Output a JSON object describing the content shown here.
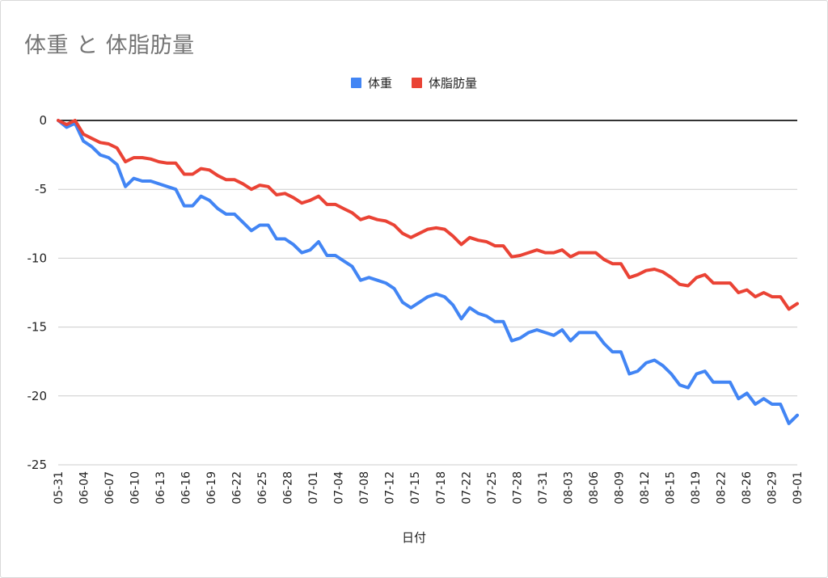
{
  "chart_data": {
    "type": "line",
    "title": "体重 と 体脂肪量",
    "xlabel": "日付",
    "ylabel": "",
    "ylim": [
      -25,
      0
    ],
    "yticks": [
      0,
      -5,
      -10,
      -15,
      -20,
      -25
    ],
    "grid": true,
    "legend_position": "top",
    "x_tick_labels": [
      "05-31",
      "06-04",
      "06-07",
      "06-10",
      "06-13",
      "06-16",
      "06-19",
      "06-22",
      "06-25",
      "06-28",
      "07-01",
      "07-04",
      "07-08",
      "07-12",
      "07-15",
      "07-18",
      "07-22",
      "07-25",
      "07-28",
      "07-31",
      "08-03",
      "08-06",
      "08-09",
      "08-12",
      "08-15",
      "08-19",
      "08-22",
      "08-26",
      "08-29",
      "09-01"
    ],
    "series": [
      {
        "name": "体重",
        "color": "#4285f4",
        "values": [
          0,
          -0.5,
          -0.2,
          -1.5,
          -1.9,
          -2.5,
          -2.7,
          -3.2,
          -4.8,
          -4.2,
          -4.4,
          -4.4,
          -4.6,
          -4.8,
          -5.0,
          -6.2,
          -6.2,
          -5.5,
          -5.8,
          -6.4,
          -6.8,
          -6.8,
          -7.4,
          -8.0,
          -7.6,
          -7.6,
          -8.6,
          -8.6,
          -9.0,
          -9.6,
          -9.4,
          -8.8,
          -9.8,
          -9.8,
          -10.2,
          -10.6,
          -11.6,
          -11.4,
          -11.6,
          -11.8,
          -12.2,
          -13.2,
          -13.6,
          -13.2,
          -12.8,
          -12.6,
          -12.8,
          -13.4,
          -14.4,
          -13.6,
          -14.0,
          -14.2,
          -14.6,
          -14.6,
          -16.0,
          -15.8,
          -15.4,
          -15.2,
          -15.4,
          -15.6,
          -15.2,
          -16.0,
          -15.4,
          -15.4,
          -15.4,
          -16.2,
          -16.8,
          -16.8,
          -18.4,
          -18.2,
          -17.6,
          -17.4,
          -17.8,
          -18.4,
          -19.2,
          -19.4,
          -18.4,
          -18.2,
          -19.0,
          -19.0,
          -19.0,
          -20.2,
          -19.8,
          -20.6,
          -20.2,
          -20.6,
          -20.6,
          -22.0,
          -21.4
        ]
      },
      {
        "name": "体脂肪量",
        "color": "#ea4335",
        "values": [
          0,
          -0.3,
          0,
          -1.0,
          -1.3,
          -1.6,
          -1.7,
          -2.0,
          -3.0,
          -2.7,
          -2.7,
          -2.8,
          -3.0,
          -3.1,
          -3.1,
          -3.9,
          -3.9,
          -3.5,
          -3.6,
          -4.0,
          -4.3,
          -4.3,
          -4.6,
          -5.0,
          -4.7,
          -4.8,
          -5.4,
          -5.3,
          -5.6,
          -6.0,
          -5.8,
          -5.5,
          -6.1,
          -6.1,
          -6.4,
          -6.7,
          -7.2,
          -7.0,
          -7.2,
          -7.3,
          -7.6,
          -8.2,
          -8.5,
          -8.2,
          -7.9,
          -7.8,
          -7.9,
          -8.4,
          -9.0,
          -8.5,
          -8.7,
          -8.8,
          -9.1,
          -9.1,
          -9.9,
          -9.8,
          -9.6,
          -9.4,
          -9.6,
          -9.6,
          -9.4,
          -9.9,
          -9.6,
          -9.6,
          -9.6,
          -10.1,
          -10.4,
          -10.4,
          -11.4,
          -11.2,
          -10.9,
          -10.8,
          -11.0,
          -11.4,
          -11.9,
          -12.0,
          -11.4,
          -11.2,
          -11.8,
          -11.8,
          -11.8,
          -12.5,
          -12.3,
          -12.8,
          -12.5,
          -12.8,
          -12.8,
          -13.7,
          -13.3
        ]
      }
    ]
  }
}
